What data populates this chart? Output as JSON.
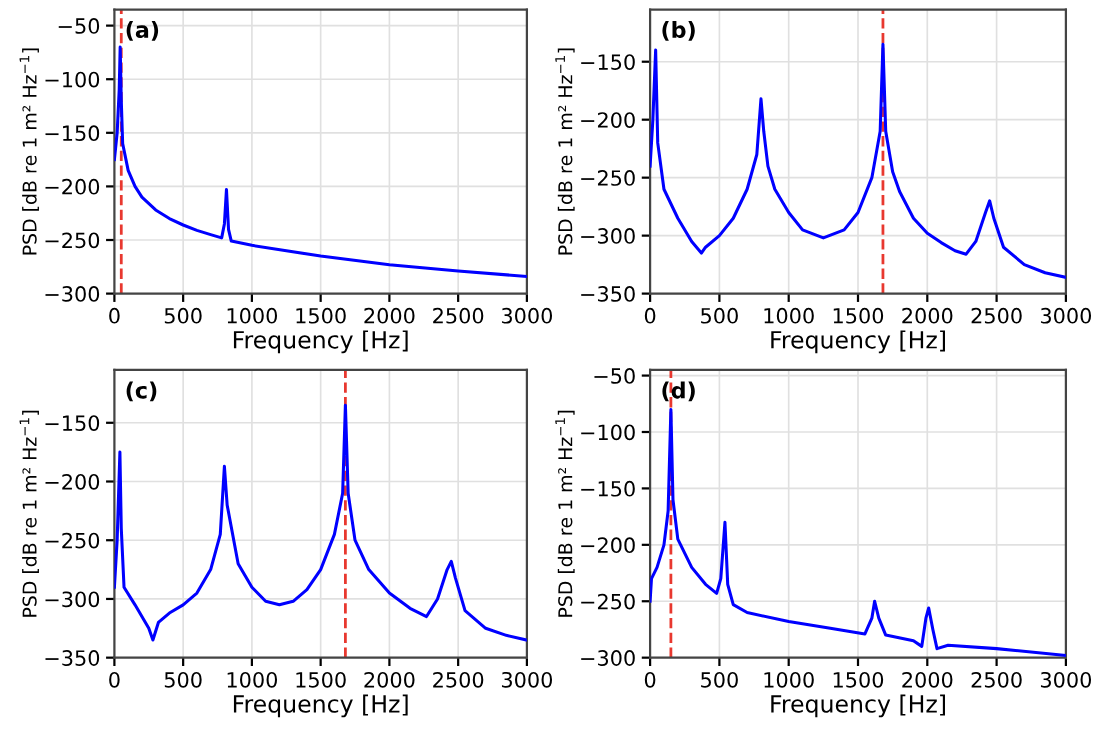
{
  "chart_data": [
    {
      "type": "line",
      "xlabel": "Frequency [Hz]",
      "ylabel": "PSD [dB re 1 m² Hz$^{−1}$]",
      "annotations": [
        "(a)"
      ],
      "xlim": [
        0,
        3000
      ],
      "xticks": [
        0,
        500,
        1000,
        1500,
        2000,
        2500,
        3000
      ],
      "ylim": [
        -300,
        -35
      ],
      "yticks": [
        -300,
        -250,
        -200,
        -150,
        -100,
        -50
      ],
      "grid": true,
      "line_style": "solid",
      "ref_lines": [
        {
          "axis": "x",
          "value": 50,
          "color": "#e8382f",
          "line_style": "dashed"
        }
      ],
      "series": [
        {
          "color": "#0000ff",
          "x": [
            0,
            20,
            35,
            42,
            50,
            60,
            100,
            150,
            200,
            300,
            400,
            500,
            600,
            700,
            780,
            800,
            815,
            830,
            850,
            1000,
            1500,
            2000,
            2500,
            3000
          ],
          "values": [
            -175,
            -150,
            -110,
            -70,
            -120,
            -160,
            -185,
            -200,
            -210,
            -222,
            -230,
            -236,
            -241,
            -245,
            -248,
            -235,
            -203,
            -240,
            -251,
            -255,
            -265,
            -273,
            -279,
            -284
          ]
        }
      ]
    },
    {
      "type": "line",
      "xlabel": "Frequency [Hz]",
      "ylabel": "PSD [dB re 1 m² Hz$^{−1}$]",
      "annotations": [
        "(b)"
      ],
      "xlim": [
        0,
        3000
      ],
      "xticks": [
        0,
        500,
        1000,
        1500,
        2000,
        2500,
        3000
      ],
      "ylim": [
        -350,
        -105
      ],
      "yticks": [
        -350,
        -300,
        -250,
        -200,
        -150
      ],
      "grid": true,
      "line_style": "solid",
      "ref_lines": [
        {
          "axis": "x",
          "value": 1680,
          "color": "#e8382f",
          "line_style": "dashed"
        }
      ],
      "series": [
        {
          "color": "#0000ff",
          "x": [
            0,
            20,
            40,
            55,
            100,
            200,
            300,
            370,
            400,
            500,
            600,
            700,
            770,
            800,
            820,
            850,
            900,
            1000,
            1100,
            1250,
            1400,
            1500,
            1600,
            1660,
            1680,
            1700,
            1750,
            1800,
            1900,
            2000,
            2100,
            2200,
            2280,
            2350,
            2420,
            2450,
            2480,
            2550,
            2700,
            2850,
            3000
          ],
          "values": [
            -240,
            -200,
            -140,
            -220,
            -260,
            -285,
            -305,
            -315,
            -310,
            -300,
            -285,
            -260,
            -230,
            -182,
            -210,
            -240,
            -260,
            -280,
            -295,
            -302,
            -295,
            -280,
            -250,
            -210,
            -135,
            -210,
            -245,
            -262,
            -285,
            -298,
            -306,
            -313,
            -316,
            -305,
            -280,
            -270,
            -285,
            -310,
            -325,
            -332,
            -336
          ]
        }
      ]
    },
    {
      "type": "line",
      "xlabel": "Frequency [Hz]",
      "ylabel": "PSD [dB re 1 m² Hz$^{−1}$]",
      "annotations": [
        "(c)"
      ],
      "xlim": [
        0,
        3000
      ],
      "xticks": [
        0,
        500,
        1000,
        1500,
        2000,
        2500,
        3000
      ],
      "ylim": [
        -350,
        -105
      ],
      "yticks": [
        -350,
        -300,
        -250,
        -200,
        -150
      ],
      "grid": true,
      "line_style": "solid",
      "ref_lines": [
        {
          "axis": "x",
          "value": 1680,
          "color": "#e8382f",
          "line_style": "dashed"
        }
      ],
      "series": [
        {
          "color": "#0000ff",
          "x": [
            0,
            20,
            40,
            50,
            70,
            150,
            250,
            280,
            320,
            400,
            500,
            600,
            700,
            770,
            800,
            820,
            900,
            1000,
            1100,
            1200,
            1300,
            1400,
            1500,
            1600,
            1660,
            1680,
            1700,
            1750,
            1850,
            2000,
            2150,
            2270,
            2350,
            2420,
            2450,
            2480,
            2550,
            2700,
            2850,
            3000
          ],
          "values": [
            -290,
            -250,
            -175,
            -240,
            -290,
            -305,
            -325,
            -335,
            -320,
            -312,
            -305,
            -295,
            -275,
            -245,
            -187,
            -220,
            -270,
            -290,
            -302,
            -305,
            -302,
            -292,
            -275,
            -245,
            -210,
            -135,
            -210,
            -250,
            -275,
            -295,
            -308,
            -315,
            -300,
            -275,
            -268,
            -282,
            -310,
            -325,
            -331,
            -335
          ]
        }
      ]
    },
    {
      "type": "line",
      "xlabel": "Frequency [Hz]",
      "ylabel": "PSD [dB re 1 m² Hz$^{−1}$]",
      "annotations": [
        "(d)"
      ],
      "xlim": [
        0,
        3000
      ],
      "xticks": [
        0,
        500,
        1000,
        1500,
        2000,
        2500,
        3000
      ],
      "ylim": [
        -300,
        -45
      ],
      "yticks": [
        -300,
        -250,
        -200,
        -150,
        -100,
        -50
      ],
      "grid": true,
      "line_style": "solid",
      "ref_lines": [
        {
          "axis": "x",
          "value": 150,
          "color": "#e8382f",
          "line_style": "dashed"
        }
      ],
      "series": [
        {
          "color": "#0000ff",
          "x": [
            0,
            10,
            50,
            100,
            130,
            150,
            165,
            200,
            300,
            400,
            480,
            510,
            540,
            560,
            600,
            700,
            1000,
            1300,
            1550,
            1600,
            1620,
            1650,
            1700,
            1900,
            1960,
            1990,
            2010,
            2040,
            2070,
            2150,
            2500,
            3000
          ],
          "values": [
            -250,
            -230,
            -220,
            -200,
            -170,
            -80,
            -160,
            -195,
            -220,
            -235,
            -243,
            -230,
            -180,
            -235,
            -253,
            -260,
            -268,
            -274,
            -279,
            -265,
            -250,
            -265,
            -280,
            -285,
            -290,
            -265,
            -256,
            -275,
            -292,
            -289,
            -292,
            -298
          ]
        }
      ]
    }
  ]
}
